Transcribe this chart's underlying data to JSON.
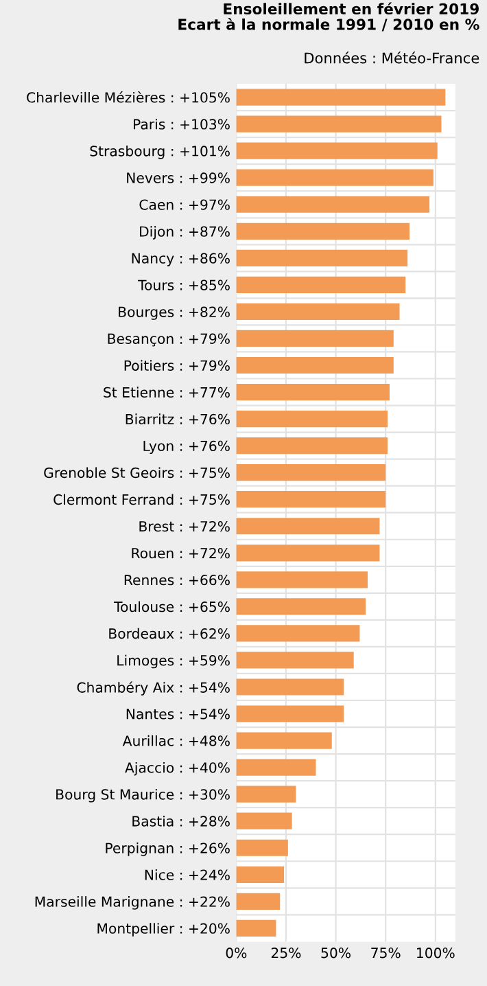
{
  "chart_data": {
    "type": "bar",
    "orientation": "horizontal",
    "title": "Ensoleillement en février 2019\nEcart à la normale 1991 / 2010 en %",
    "subtitle": "Données : Météo-France",
    "categories": [
      "Charleville Mézières : +105%",
      "Paris : +103%",
      "Strasbourg : +101%",
      "Nevers : +99%",
      "Caen : +97%",
      "Dijon : +87%",
      "Nancy : +86%",
      "Tours : +85%",
      "Bourges : +82%",
      "Besançon : +79%",
      "Poitiers : +79%",
      "St Etienne : +77%",
      "Biarritz : +76%",
      "Lyon : +76%",
      "Grenoble St Geoirs : +75%",
      "Clermont Ferrand : +75%",
      "Brest : +72%",
      "Rouen : +72%",
      "Rennes : +66%",
      "Toulouse : +65%",
      "Bordeaux : +62%",
      "Limoges : +59%",
      "Chambéry Aix : +54%",
      "Nantes : +54%",
      "Aurillac : +48%",
      "Ajaccio : +40%",
      "Bourg St Maurice : +30%",
      "Bastia : +28%",
      "Perpignan : +26%",
      "Nice : +24%",
      "Marseille Marignane : +22%",
      "Montpellier : +20%"
    ],
    "values": [
      105,
      103,
      101,
      99,
      97,
      87,
      86,
      85,
      82,
      79,
      79,
      77,
      76,
      76,
      75,
      75,
      72,
      72,
      66,
      65,
      62,
      59,
      54,
      54,
      48,
      40,
      30,
      28,
      26,
      24,
      22,
      20
    ],
    "color": "#f39b55",
    "xlim": [
      0,
      110
    ],
    "xticks": [
      {
        "value": 0,
        "label": "0%"
      },
      {
        "value": 25,
        "label": "25%"
      },
      {
        "value": 50,
        "label": "50%"
      },
      {
        "value": 75,
        "label": "75%"
      },
      {
        "value": 100,
        "label": "100%"
      }
    ],
    "grid": true
  }
}
